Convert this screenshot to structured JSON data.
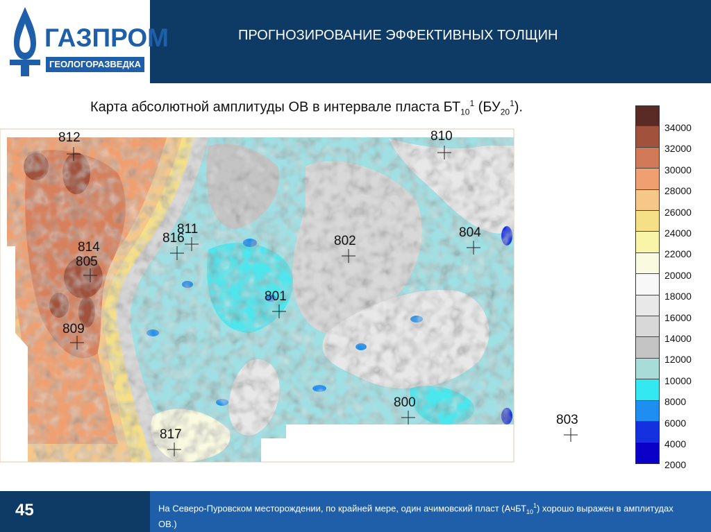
{
  "header": {
    "logo_text": "ГАЗПРОМ",
    "logo_subtext": "ГЕОЛОГОРАЗВЕДКА",
    "title": "ПРОГНОЗИРОВАНИЕ ЭФФЕКТИВНЫХ ТОЛЩИН"
  },
  "map": {
    "title_main": "Карта абсолютной амплитуды ОВ в интервале пласта БТ",
    "title_sub1": "10",
    "title_sup1": "1",
    "title_mid": " (БУ",
    "title_sub2": "20",
    "title_sup2": "1",
    "title_end": ").",
    "wells": [
      {
        "label": "812",
        "id": "812"
      },
      {
        "label": "810",
        "id": "810"
      },
      {
        "label": "811",
        "id": "811"
      },
      {
        "label": "816",
        "id": "816"
      },
      {
        "label": "814",
        "id": "814"
      },
      {
        "label": "805",
        "id": "805"
      },
      {
        "label": "802",
        "id": "802"
      },
      {
        "label": "804",
        "id": "804"
      },
      {
        "label": "801",
        "id": "801"
      },
      {
        "label": "809",
        "id": "809"
      },
      {
        "label": "800",
        "id": "800"
      },
      {
        "label": "817",
        "id": "817"
      },
      {
        "label": "803",
        "id": "803"
      }
    ]
  },
  "legend": {
    "colors": [
      "#5a2a24",
      "#a0523c",
      "#d27a58",
      "#f0a070",
      "#f5c88a",
      "#f5e088",
      "#f8f5a8",
      "#fafae0",
      "#f8f8f8",
      "#e8e8e8",
      "#d8d8d8",
      "#c4c4c4",
      "#a8dcd8",
      "#33e8f0",
      "#1e8ef0",
      "#1530e0",
      "#0a00c8"
    ],
    "labels": [
      "34000",
      "32000",
      "30000",
      "28000",
      "26000",
      "24000",
      "22000",
      "20000",
      "18000",
      "16000",
      "14000",
      "12000",
      "10000",
      "8000",
      "6000",
      "4000",
      "2000"
    ]
  },
  "footer": {
    "page_number": "45",
    "text_part1": "На Северо-Пуровском месторождении, по крайней мере, один ачимовский пласт (АчБТ",
    "text_sub": "10",
    "text_sup": "1",
    "text_part2": ") хорошо выражен в амплитудах ОВ.)"
  }
}
